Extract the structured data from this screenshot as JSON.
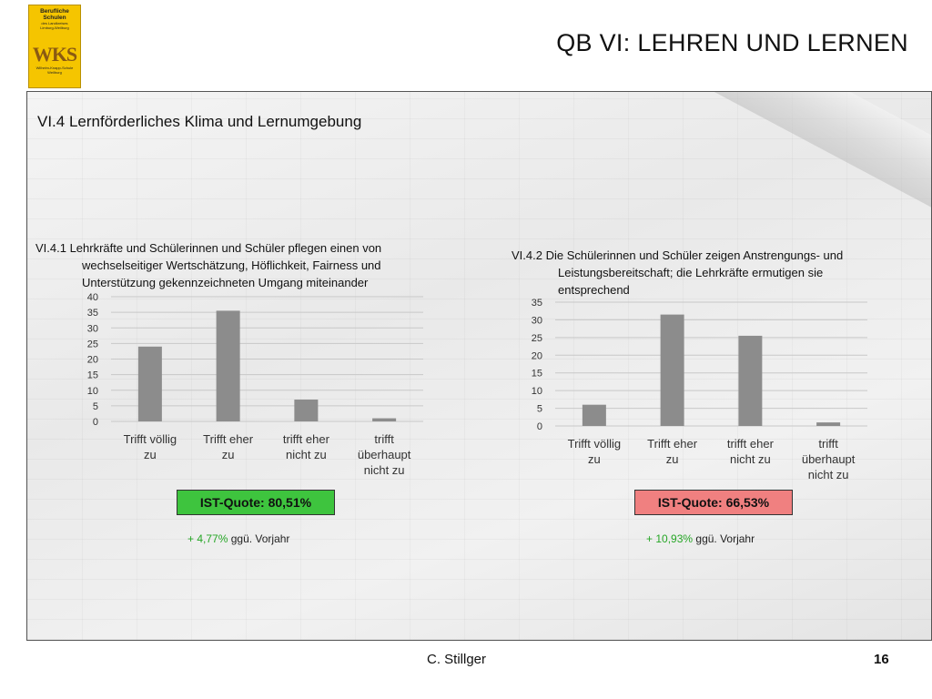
{
  "logo": {
    "line1": "Berufliche Schulen",
    "line2": "des Landkreises",
    "line3": "Limburg-Weilburg",
    "mark": "WKS",
    "bottom1": "Wilhelm-Knapp-Schule",
    "bottom2": "Weilburg"
  },
  "slide_title": "QB VI: LEHREN UND LERNEN",
  "section_title": "VI.4 Lernförderliches Klima und Lernumgebung",
  "footer": {
    "author": "C. Stillger",
    "page": "16"
  },
  "colors": {
    "bar": "#8c8c8c",
    "quota_good": "#3ec43e",
    "quota_warn": "#f08080",
    "delta_green": "#26a626"
  },
  "chart_data": [
    {
      "type": "bar",
      "title_line1": "VI.4.1 Lehrkräfte und Schülerinnen und Schüler pflegen einen von",
      "title_line2": "wechselseitiger Wertschätzung, Höflichkeit, Fairness und",
      "title_line3": "Unterstützung gekennzeichneten Umgang miteinander",
      "categories": [
        [
          "Trifft völlig",
          "zu"
        ],
        [
          "Trifft eher",
          "zu"
        ],
        [
          "trifft eher",
          "nicht zu"
        ],
        [
          "trifft",
          "überhaupt",
          "nicht zu"
        ]
      ],
      "values": [
        24,
        35.5,
        7,
        1
      ],
      "ylim": [
        0,
        40
      ],
      "yticks": [
        "0",
        "5",
        "10",
        "15",
        "20",
        "25",
        "30",
        "35",
        "40"
      ],
      "grid": true,
      "quota": "IST-Quote: 80,51%",
      "delta_value": "+ 4,77%",
      "delta_text": "ggü. Vorjahr"
    },
    {
      "type": "bar",
      "title_line1": "VI.4.2 Die Schülerinnen und Schüler zeigen Anstrengungs- und",
      "title_line2": "Leistungsbereitschaft; die Lehrkräfte ermutigen sie",
      "title_line3": "entsprechend",
      "categories": [
        [
          "Trifft völlig",
          "zu"
        ],
        [
          "Trifft eher",
          "zu"
        ],
        [
          "trifft eher",
          "nicht zu"
        ],
        [
          "trifft",
          "überhaupt",
          "nicht zu"
        ]
      ],
      "values": [
        6,
        31.5,
        25.5,
        1
      ],
      "ylim": [
        0,
        35
      ],
      "yticks": [
        "0",
        "5",
        "10",
        "15",
        "20",
        "25",
        "30",
        "35"
      ],
      "grid": true,
      "quota": "IST-Quote: 66,53%",
      "delta_value": "+ 10,93%",
      "delta_text": "ggü. Vorjahr"
    }
  ]
}
